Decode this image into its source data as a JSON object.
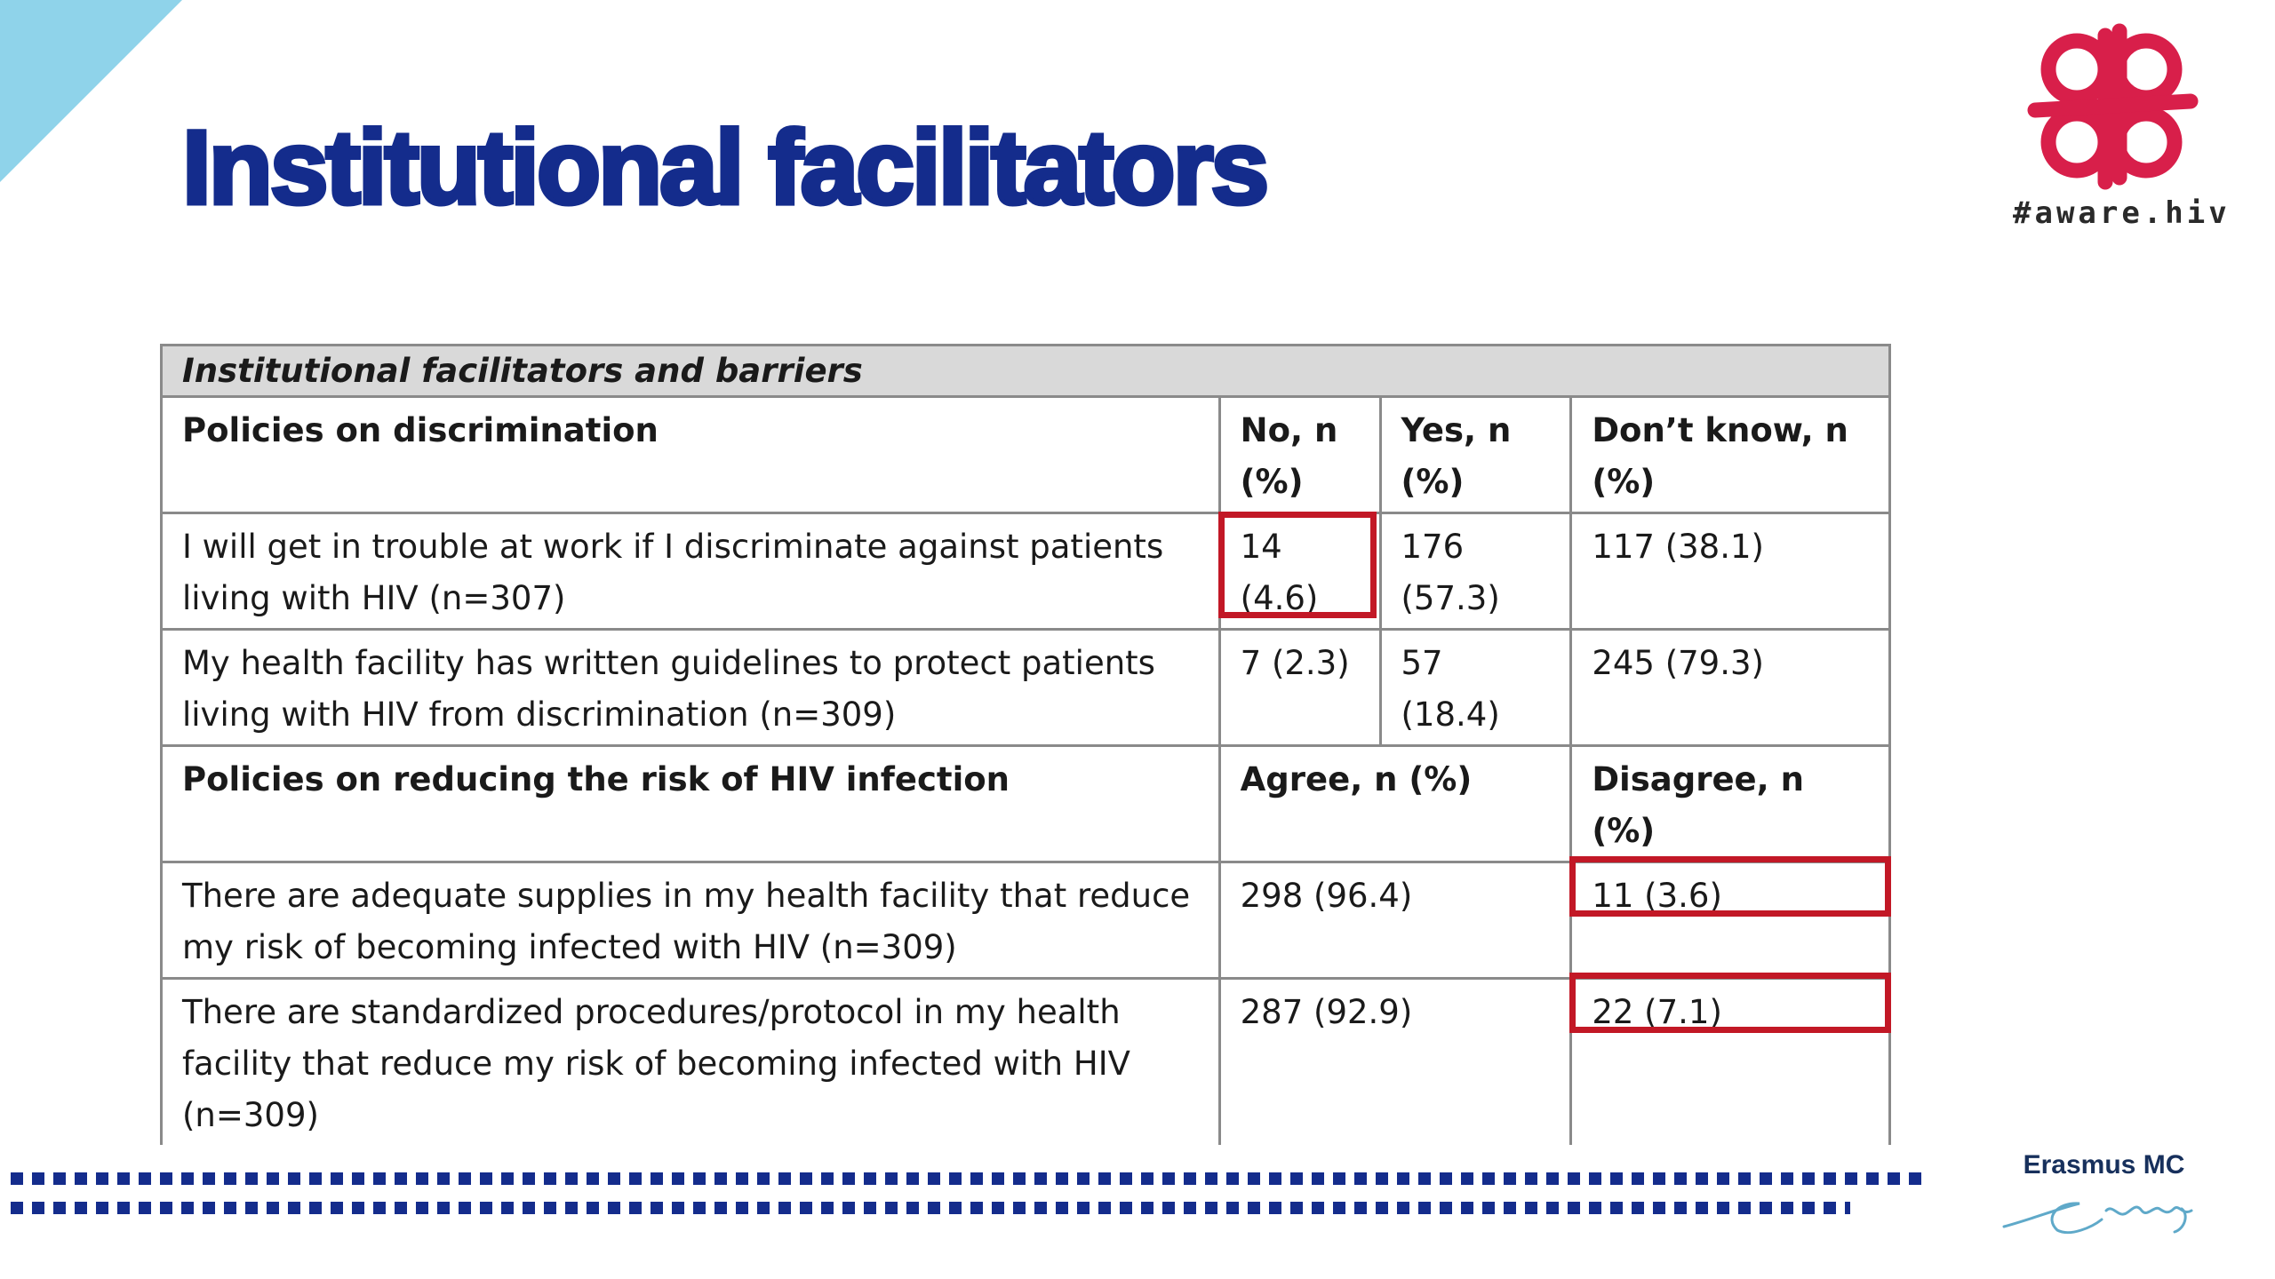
{
  "slide": {
    "title": "Institutional facilitators"
  },
  "logos": {
    "aware_tag": "#aware.hiv",
    "erasmus_name": "Erasmus MC"
  },
  "colors": {
    "title": "#142c8c",
    "highlight": "#c21826",
    "logo_red": "#d81f4a",
    "corner": "#8fd3ea"
  },
  "table": {
    "section_title": "Institutional facilitators and barriers",
    "discrimination": {
      "heading": "Policies on discrimination",
      "col_no": "No, n (%)",
      "col_yes": "Yes, n (%)",
      "col_dont_know": "Don’t know, n (%)",
      "rows": [
        {
          "statement": "I will get in trouble at work if I discriminate against patients living with HIV (n=307)",
          "no": "14 (4.6)",
          "yes": "176 (57.3)",
          "dont_know": "117 (38.1)"
        },
        {
          "statement": "My health facility has written guidelines to protect patients living with HIV from discrimination (n=309)",
          "no": "7 (2.3)",
          "yes": "57 (18.4)",
          "dont_know": "245 (79.3)"
        }
      ]
    },
    "risk": {
      "heading": "Policies on reducing the risk of HIV infection",
      "col_agree": "Agree, n (%)",
      "col_disagree": "Disagree, n (%)",
      "rows": [
        {
          "statement": "There are adequate supplies in my health facility that reduce my risk of becoming infected with HIV (n=309)",
          "agree": "298 (96.4)",
          "disagree": "11 (3.6)"
        },
        {
          "statement": "There are standardized procedures/protocol in my health facility that reduce my risk of becoming infected with HIV (n=309)",
          "agree": "287 (92.9)",
          "disagree": "22 (7.1)"
        }
      ]
    }
  }
}
